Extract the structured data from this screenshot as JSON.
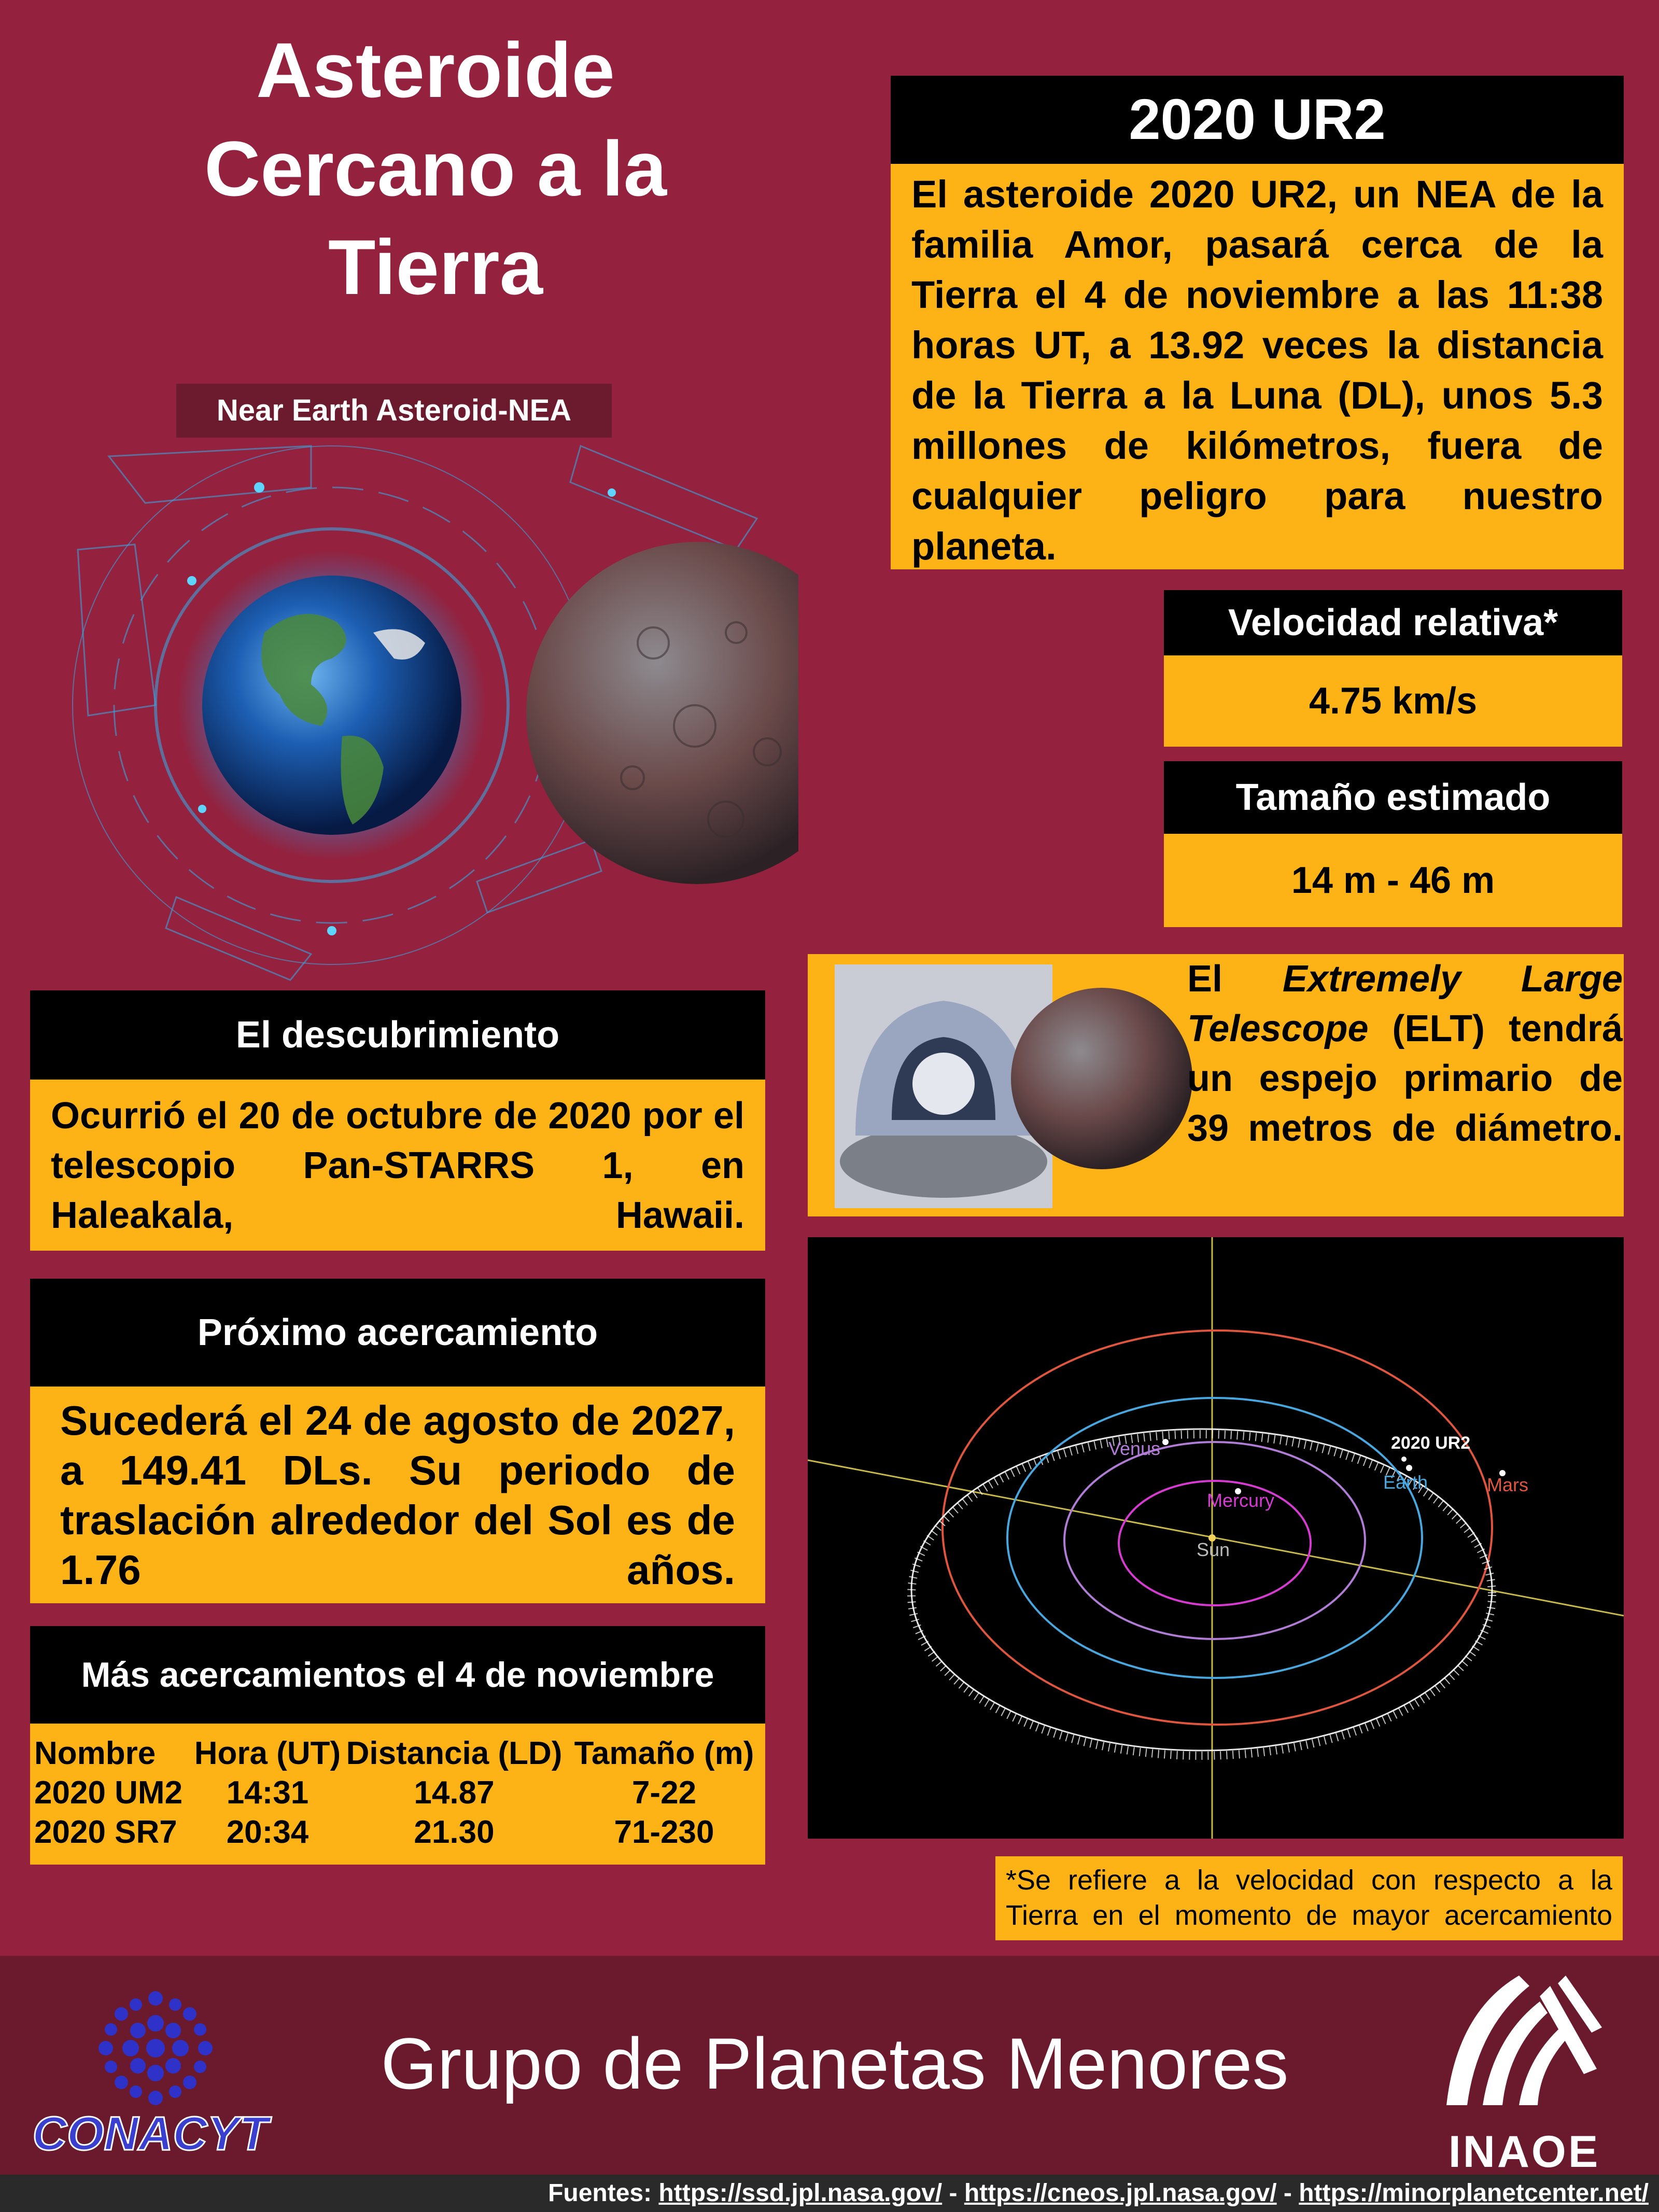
{
  "header": {
    "title_line1": "Asteroide",
    "title_line2": "Cercano a la",
    "title_line3": "Tierra",
    "subtitle": "Near Earth Asteroid-NEA"
  },
  "ur2": {
    "heading": "2020 UR2",
    "body": "El  asteroide 2020 UR2, un NEA de la familia Amor, pasará cerca de la Tierra el 4 de noviembre a las 11:38 horas UT, a 13.92 veces la distancia de la Tierra a la Luna (DL), unos 5.3 millones de kilómetros, fuera de cualquier peligro para nuestro planeta."
  },
  "velocidad": {
    "label": "Velocidad relativa*",
    "value": "4.75 km/s"
  },
  "tamano": {
    "label": "Tamaño estimado",
    "value": "14 m - 46 m"
  },
  "elt": {
    "prefix": "El ",
    "name": "Extremely Large Telescope",
    "rest": " (ELT) tendrá un espejo primario de 39 metros de diámetro."
  },
  "descubrimiento": {
    "heading": "El descubrimiento",
    "body": "Ocurrió el 20 de octubre de 2020 por el telescopio Pan-STARRS 1, en Haleakala, Hawaii."
  },
  "proximo": {
    "heading": "Próximo acercamiento",
    "body": "Sucederá el 24 de agosto de 2027, a 149.41 DLs. Su periodo de traslación alrededor del Sol es de 1.76 años."
  },
  "mas": {
    "heading": "Más acercamientos el 4 de noviembre",
    "columns": [
      "Nombre",
      "Hora (UT)",
      "Distancia (LD)",
      "Tamaño (m)"
    ],
    "rows": [
      [
        "2020 UM2",
        "14:31",
        "14.87",
        "7-22"
      ],
      [
        "2020 SR7",
        "20:34",
        "21.30",
        "71-230"
      ]
    ]
  },
  "orbit": {
    "labels": {
      "venus": "Venus",
      "mercury": "Mercury",
      "sun": "Sun",
      "earth": "Earth",
      "mars": "Mars",
      "asteroid": "2020 UR2"
    },
    "colors": {
      "venus": "#b07cd6",
      "mercury": "#d63ad1",
      "earth": "#49a7e0",
      "mars": "#e0553e",
      "asteroid": "#ffffff"
    }
  },
  "note": "*Se refiere a la velocidad con respecto a la Tierra en el momento de mayor acercamiento",
  "footer": {
    "group": "Grupo de Planetas Menores",
    "conacyt": "CONACYT",
    "inaoe": "INAOE",
    "fuentes_label": "Fuentes: ",
    "links": [
      "https://ssd.jpl.nasa.gov/",
      "https://cneos.jpl.nasa.gov/",
      "https://minorplanetcenter.net/"
    ],
    "sep": " - "
  },
  "colors": {
    "background": "#94213d",
    "panel": "#fdb316",
    "header": "#000000",
    "footer": "#6b1a2e"
  }
}
